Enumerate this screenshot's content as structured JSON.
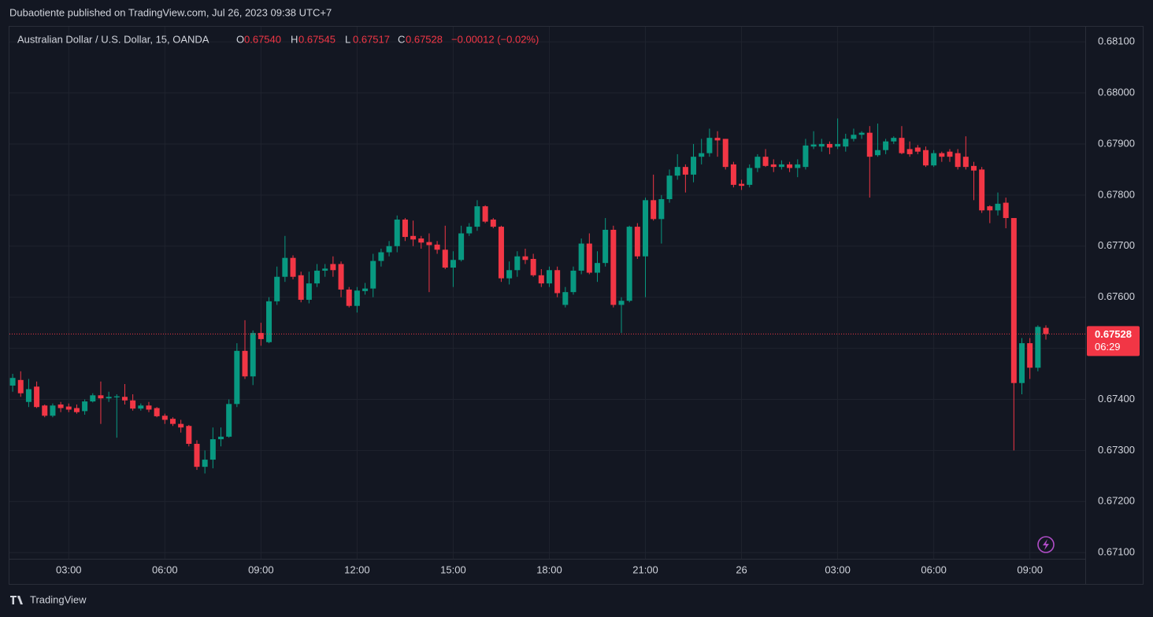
{
  "header": {
    "text": "Dubaotiente published on TradingView.com, Jul 26, 2023 09:38 UTC+7"
  },
  "footer": {
    "brand": "TradingView"
  },
  "chart_data": {
    "type": "candlestick",
    "title": "Australian Dollar / U.S. Dollar, 15, OANDA",
    "legend": [
      {
        "key": "O",
        "value": 0.6754,
        "label": "0.67540"
      },
      {
        "key": "H",
        "value": 0.67545,
        "label": "0.67545"
      },
      {
        "key": "L",
        "value": 0.67517,
        "label": "0.67517"
      },
      {
        "key": "C",
        "value": 0.67528,
        "label": "0.67528"
      }
    ],
    "change": "−0.00012 (−0.02%)",
    "last_price": {
      "value": 0.67528,
      "label": "0.67528"
    },
    "countdown": "06:29",
    "up_color": "#089981",
    "down_color": "#f23645",
    "grid": true,
    "ylim": [
      0.67088,
      0.68131
    ],
    "yticks": [
      {
        "value": 0.671,
        "label": "0.67100"
      },
      {
        "value": 0.672,
        "label": "0.67200"
      },
      {
        "value": 0.673,
        "label": "0.67300"
      },
      {
        "value": 0.674,
        "label": "0.67400"
      },
      {
        "value": 0.675,
        "label": "0.67500"
      },
      {
        "value": 0.676,
        "label": "0.67600"
      },
      {
        "value": 0.677,
        "label": "0.67700"
      },
      {
        "value": 0.678,
        "label": "0.67800"
      },
      {
        "value": 0.679,
        "label": "0.67900"
      },
      {
        "value": 0.68,
        "label": "0.68000"
      },
      {
        "value": 0.681,
        "label": "0.68100"
      }
    ],
    "categories": [
      null,
      null,
      null,
      null,
      null,
      null,
      null,
      "03:00",
      null,
      null,
      null,
      null,
      null,
      null,
      null,
      null,
      null,
      null,
      null,
      "06:00",
      null,
      null,
      null,
      null,
      null,
      null,
      null,
      null,
      null,
      null,
      null,
      "09:00",
      null,
      null,
      null,
      null,
      null,
      null,
      null,
      null,
      null,
      null,
      null,
      "12:00",
      null,
      null,
      null,
      null,
      null,
      null,
      null,
      null,
      null,
      null,
      null,
      "15:00",
      null,
      null,
      null,
      null,
      null,
      null,
      null,
      null,
      null,
      null,
      null,
      "18:00",
      null,
      null,
      null,
      null,
      null,
      null,
      null,
      null,
      null,
      null,
      null,
      "21:00",
      null,
      null,
      null,
      null,
      null,
      null,
      null,
      null,
      null,
      null,
      null,
      "26",
      null,
      null,
      null,
      null,
      null,
      null,
      null,
      null,
      null,
      null,
      null,
      "03:00",
      null,
      null,
      null,
      null,
      null,
      null,
      null,
      null,
      null,
      null,
      null,
      "06:00",
      null,
      null,
      null,
      null,
      null,
      null,
      null,
      null,
      null,
      null,
      null,
      "09:00",
      null,
      null
    ],
    "open": [
      0.67427,
      0.67438,
      0.67395,
      0.67425,
      0.67388,
      0.67368,
      0.6739,
      0.67386,
      0.67383,
      0.67377,
      0.67396,
      0.67408,
      0.67402,
      0.67404,
      0.67405,
      0.67398,
      0.67382,
      0.67388,
      0.67383,
      0.67368,
      0.67362,
      0.67352,
      0.67348,
      0.67313,
      0.67268,
      0.67282,
      0.67322,
      0.67327,
      0.67391,
      0.67495,
      0.67445,
      0.6753,
      0.67512,
      0.67592,
      0.6764,
      0.67677,
      0.67643,
      0.67595,
      0.67627,
      0.67652,
      0.67665,
      0.67665,
      0.67615,
      0.67583,
      0.67612,
      0.67617,
      0.67671,
      0.67688,
      0.677,
      0.67752,
      0.6772,
      0.67715,
      0.67708,
      0.67703,
      0.67693,
      0.67658,
      0.67673,
      0.67725,
      0.67738,
      0.67778,
      0.67752,
      0.67738,
      0.67637,
      0.67653,
      0.6768,
      0.67675,
      0.67643,
      0.67627,
      0.67653,
      0.67585,
      0.6761,
      0.67652,
      0.67705,
      0.67648,
      0.67667,
      0.67732,
      0.67585,
      0.67593,
      0.67738,
      0.6768,
      0.6779,
      0.67753,
      0.67792,
      0.67838,
      0.67855,
      0.6784,
      0.67875,
      0.67882,
      0.67912,
      0.6791,
      0.6786,
      0.67822,
      0.6782,
      0.67853,
      0.67875,
      0.6786,
      0.67855,
      0.6786,
      0.67853,
      0.67855,
      0.67895,
      0.67895,
      0.679,
      0.67895,
      0.67895,
      0.6791,
      0.67918,
      0.67922,
      0.67878,
      0.67888,
      0.67905,
      0.67912,
      0.6789,
      0.67893,
      0.67888,
      0.67858,
      0.67882,
      0.67885,
      0.67882,
      0.67875,
      0.67857,
      0.6785,
      0.67778,
      0.6777,
      0.67785,
      0.67755,
      0.67432,
      0.6751,
      0.67462,
      0.6754
    ],
    "high": [
      0.6745,
      0.67455,
      0.6744,
      0.67435,
      0.6739,
      0.67392,
      0.67395,
      0.67392,
      0.6739,
      0.674,
      0.67412,
      0.67435,
      0.67415,
      0.6741,
      0.6743,
      0.6741,
      0.67392,
      0.67395,
      0.67385,
      0.67372,
      0.67365,
      0.6736,
      0.6735,
      0.6732,
      0.673,
      0.67345,
      0.67345,
      0.674,
      0.6751,
      0.67555,
      0.67535,
      0.6755,
      0.676,
      0.6766,
      0.6772,
      0.67682,
      0.6765,
      0.6765,
      0.67665,
      0.67665,
      0.6768,
      0.6767,
      0.6762,
      0.6762,
      0.67628,
      0.67685,
      0.67695,
      0.6771,
      0.6776,
      0.67755,
      0.6775,
      0.6772,
      0.67725,
      0.6771,
      0.6774,
      0.6769,
      0.6774,
      0.67745,
      0.6779,
      0.6778,
      0.67755,
      0.6774,
      0.6767,
      0.6769,
      0.67695,
      0.67685,
      0.67655,
      0.6766,
      0.6766,
      0.6762,
      0.6766,
      0.67715,
      0.67725,
      0.6769,
      0.67755,
      0.6774,
      0.676,
      0.6774,
      0.67745,
      0.67795,
      0.6784,
      0.678,
      0.6785,
      0.6788,
      0.6786,
      0.679,
      0.6791,
      0.6793,
      0.67925,
      0.6791,
      0.67865,
      0.6783,
      0.6786,
      0.6788,
      0.6789,
      0.6787,
      0.67868,
      0.67865,
      0.6787,
      0.6791,
      0.67925,
      0.6791,
      0.67905,
      0.6795,
      0.6792,
      0.6793,
      0.67925,
      0.67935,
      0.6794,
      0.6791,
      0.67915,
      0.67935,
      0.67905,
      0.67898,
      0.67895,
      0.67888,
      0.67885,
      0.6789,
      0.6789,
      0.67915,
      0.67865,
      0.67855,
      0.6778,
      0.67805,
      0.67795,
      0.67755,
      0.6752,
      0.6752,
      0.67545,
      0.67545
    ],
    "low": [
      0.67415,
      0.67405,
      0.67385,
      0.67383,
      0.67365,
      0.67365,
      0.67375,
      0.67375,
      0.67372,
      0.6737,
      0.67394,
      0.67352,
      0.67395,
      0.67325,
      0.6739,
      0.67378,
      0.67378,
      0.67375,
      0.67365,
      0.67352,
      0.67348,
      0.67335,
      0.67308,
      0.67262,
      0.67255,
      0.67265,
      0.67308,
      0.67325,
      0.67385,
      0.6744,
      0.67428,
      0.67505,
      0.6751,
      0.67585,
      0.6763,
      0.67635,
      0.6759,
      0.67588,
      0.6762,
      0.6764,
      0.6764,
      0.676,
      0.6758,
      0.6757,
      0.67605,
      0.676,
      0.6766,
      0.6768,
      0.67688,
      0.6771,
      0.677,
      0.67695,
      0.6761,
      0.67685,
      0.67655,
      0.6762,
      0.6767,
      0.6772,
      0.6773,
      0.67745,
      0.67735,
      0.6763,
      0.67625,
      0.6764,
      0.67665,
      0.6764,
      0.6762,
      0.6762,
      0.676,
      0.6758,
      0.67605,
      0.67645,
      0.67645,
      0.6763,
      0.6766,
      0.6758,
      0.6753,
      0.6759,
      0.67675,
      0.676,
      0.6775,
      0.67705,
      0.67785,
      0.6783,
      0.67805,
      0.67825,
      0.6786,
      0.67875,
      0.67875,
      0.6785,
      0.67815,
      0.6781,
      0.67815,
      0.67845,
      0.67855,
      0.67845,
      0.6785,
      0.67845,
      0.67835,
      0.6785,
      0.6789,
      0.67885,
      0.6788,
      0.6789,
      0.67885,
      0.67905,
      0.6791,
      0.67795,
      0.67875,
      0.6788,
      0.679,
      0.6788,
      0.67875,
      0.6788,
      0.67855,
      0.67855,
      0.67865,
      0.67865,
      0.6785,
      0.6785,
      0.6779,
      0.67765,
      0.67745,
      0.6776,
      0.67735,
      0.673,
      0.6741,
      0.6744,
      0.67455,
      0.67517
    ],
    "close": [
      0.67442,
      0.67412,
      0.6742,
      0.67385,
      0.67368,
      0.67388,
      0.67383,
      0.6738,
      0.67375,
      0.67396,
      0.67408,
      0.67402,
      0.67405,
      0.67406,
      0.67398,
      0.67382,
      0.67388,
      0.6738,
      0.67367,
      0.6736,
      0.67352,
      0.67345,
      0.67313,
      0.67268,
      0.67282,
      0.67322,
      0.67327,
      0.67391,
      0.67495,
      0.67445,
      0.6753,
      0.67518,
      0.67592,
      0.6764,
      0.67677,
      0.6764,
      0.67595,
      0.67627,
      0.67652,
      0.67656,
      0.67653,
      0.67615,
      0.67583,
      0.67613,
      0.67617,
      0.67671,
      0.67688,
      0.677,
      0.67752,
      0.67718,
      0.67713,
      0.67707,
      0.67702,
      0.67693,
      0.67658,
      0.67673,
      0.67725,
      0.67738,
      0.67778,
      0.67748,
      0.67738,
      0.67637,
      0.67653,
      0.6768,
      0.67673,
      0.67643,
      0.67627,
      0.67653,
      0.67608,
      0.6761,
      0.67652,
      0.67705,
      0.67648,
      0.67667,
      0.67732,
      0.67585,
      0.67593,
      0.67738,
      0.6768,
      0.6779,
      0.67753,
      0.67792,
      0.67838,
      0.67855,
      0.6784,
      0.67875,
      0.67882,
      0.67912,
      0.67907,
      0.67855,
      0.6782,
      0.67818,
      0.67853,
      0.67875,
      0.67857,
      0.67855,
      0.6786,
      0.67853,
      0.6786,
      0.67897,
      0.67899,
      0.679,
      0.67893,
      0.679,
      0.6791,
      0.67918,
      0.67922,
      0.67875,
      0.67888,
      0.67905,
      0.67912,
      0.67882,
      0.6788,
      0.67885,
      0.67858,
      0.67882,
      0.67875,
      0.67875,
      0.67855,
      0.67855,
      0.67848,
      0.6777,
      0.6777,
      0.67783,
      0.67755,
      0.67432,
      0.6751,
      0.67462,
      0.67542,
      0.67528
    ]
  }
}
